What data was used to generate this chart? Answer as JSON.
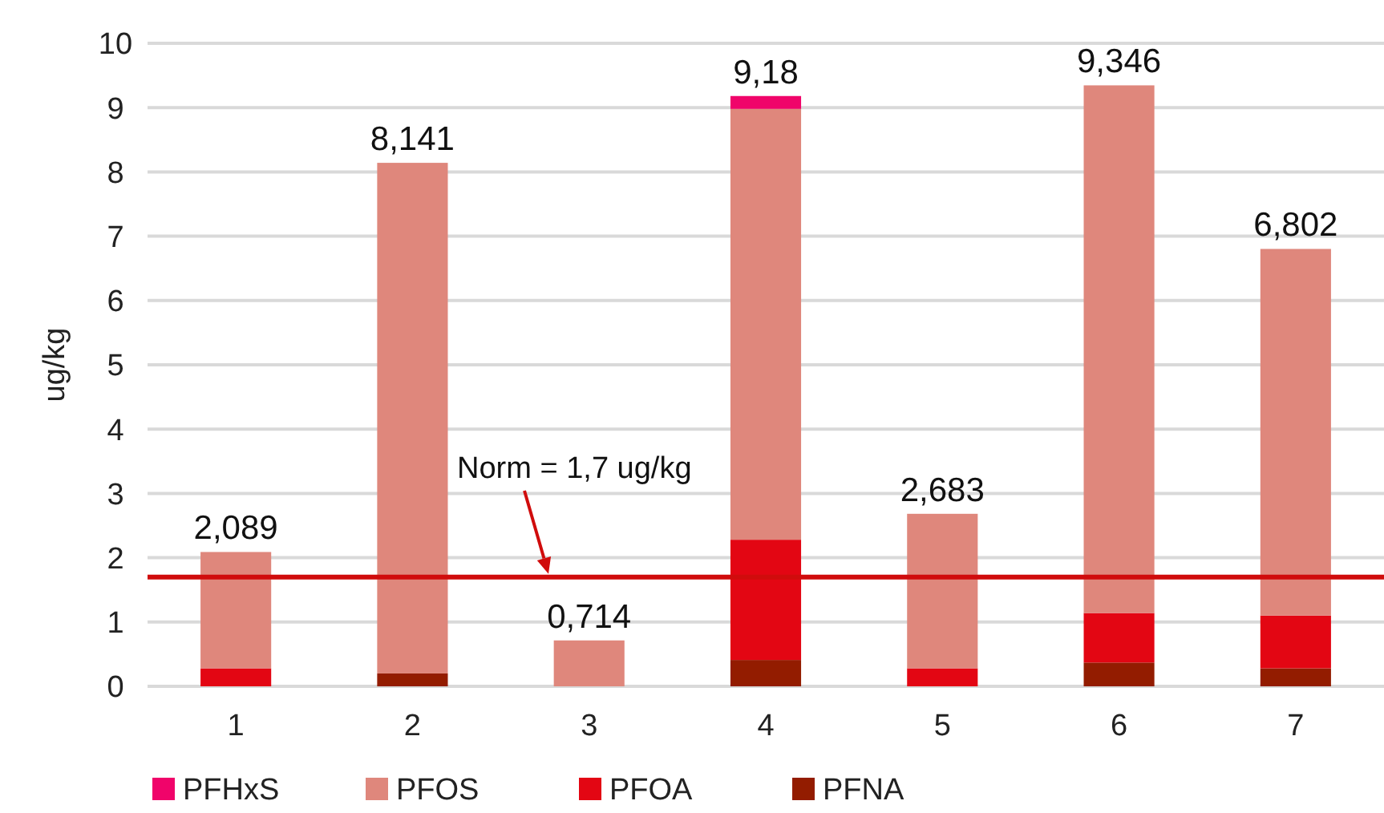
{
  "chart_data": {
    "type": "bar",
    "stacked": true,
    "categories": [
      "1",
      "2",
      "3",
      "4",
      "5",
      "6",
      "7"
    ],
    "ylabel": "ug/kg",
    "ylim": [
      0,
      10
    ],
    "yticks": [
      0,
      1,
      2,
      3,
      4,
      5,
      6,
      7,
      8,
      9,
      10
    ],
    "grid": "y",
    "legend": "bottom",
    "series": [
      {
        "name": "PFNA",
        "color": "#931c00",
        "values": [
          0,
          0.2,
          0,
          0.41,
          0,
          0.37,
          0.28
        ]
      },
      {
        "name": "PFOA",
        "color": "#e30613",
        "values": [
          0.28,
          0,
          0,
          1.87,
          0.28,
          0.77,
          0.82
        ]
      },
      {
        "name": "PFOS",
        "color": "#df877c",
        "values": [
          1.809,
          7.941,
          0.714,
          6.7,
          2.403,
          8.206,
          5.702
        ]
      },
      {
        "name": "PFHxS",
        "color": "#f0046a",
        "values": [
          0,
          0,
          0,
          0.2,
          0,
          0,
          0
        ]
      }
    ],
    "totals": [
      "2,089",
      "8,141",
      "0,714",
      "9,18",
      "2,683",
      "9,346",
      "6,802"
    ],
    "ref_lines": [
      {
        "axis": "y",
        "value": 1.7,
        "label": "Norm = 1,7 ug/kg",
        "color": "#d00c0c"
      }
    ]
  }
}
